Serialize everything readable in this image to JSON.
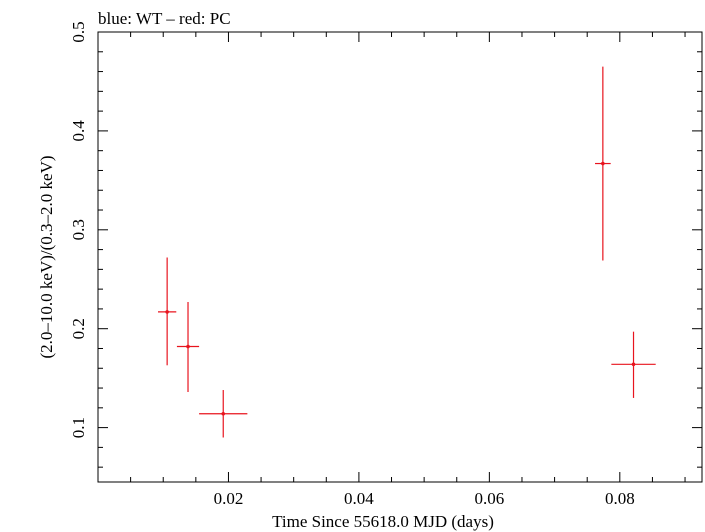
{
  "chart_data": {
    "type": "scatter",
    "title": "blue: WT – red: PC",
    "xlabel": "Time Since 55618.0 MJD (days)",
    "ylabel": "(2.0–10.0 keV)/(0.3–2.0 keV)",
    "xlim": [
      0.0,
      0.0926
    ],
    "ylim": [
      0.045,
      0.5
    ],
    "xticks": [
      0.02,
      0.04,
      0.06,
      0.08
    ],
    "xtick_labels": [
      "0.02",
      "0.04",
      "0.06",
      "0.08"
    ],
    "yticks": [
      0.1,
      0.2,
      0.3,
      0.4,
      0.5
    ],
    "ytick_labels": [
      "0.1",
      "0.2",
      "0.3",
      "0.4",
      "0.5"
    ],
    "grid": false,
    "series": [
      {
        "color": "#e8141e",
        "points": [
          {
            "x": 0.0106,
            "xerr": 0.0014,
            "y": 0.217,
            "yerr_lo": 0.054,
            "yerr_hi": 0.055
          },
          {
            "x": 0.0138,
            "xerr": 0.0017,
            "y": 0.182,
            "yerr_lo": 0.046,
            "yerr_hi": 0.045
          },
          {
            "x": 0.0192,
            "xerr": 0.0037,
            "y": 0.114,
            "yerr_lo": 0.024,
            "yerr_hi": 0.024
          },
          {
            "x": 0.0774,
            "xerr": 0.0012,
            "y": 0.367,
            "yerr_lo": 0.098,
            "yerr_hi": 0.098
          },
          {
            "x": 0.0821,
            "xerr": 0.0034,
            "y": 0.164,
            "yerr_lo": 0.034,
            "yerr_hi": 0.033
          }
        ]
      }
    ]
  }
}
